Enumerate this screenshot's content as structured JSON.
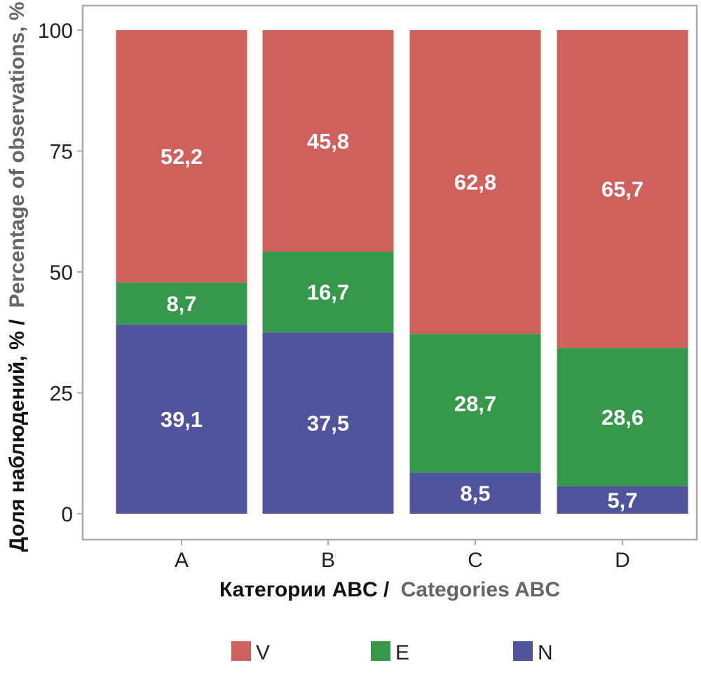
{
  "chart_data": {
    "type": "bar",
    "stacked": true,
    "categories": [
      "A",
      "B",
      "C",
      "D"
    ],
    "series": [
      {
        "name": "N",
        "color": "#50549c",
        "values": [
          39.1,
          37.5,
          8.5,
          5.7
        ]
      },
      {
        "name": "E",
        "color": "#36984a",
        "values": [
          8.7,
          16.7,
          28.7,
          28.6
        ]
      },
      {
        "name": "V",
        "color": "#d0605c",
        "values": [
          52.2,
          45.8,
          62.8,
          65.7
        ]
      }
    ],
    "value_labels": {
      "N": [
        "39,1",
        "37,5",
        "8,5",
        "5,7"
      ],
      "E": [
        "8,7",
        "16,7",
        "28,7",
        "28,6"
      ],
      "V": [
        "52,2",
        "45,8",
        "62,8",
        "65,7"
      ]
    },
    "xlabel": {
      "ru": "Категории ABC /",
      "en": "Categories ABC"
    },
    "ylabel": {
      "ru": "Доля наблюдений, % /",
      "en": "Percentage of observations, %"
    },
    "ylim": [
      0,
      100
    ],
    "yticks": [
      0,
      25,
      50,
      75,
      100
    ],
    "grid": false,
    "legend_position": "bottom",
    "legend_order": [
      "V",
      "E",
      "N"
    ]
  },
  "colors": {
    "frame": "#aaaaaa",
    "axis_title_ru": "#111111",
    "axis_title_en": "#666666"
  }
}
